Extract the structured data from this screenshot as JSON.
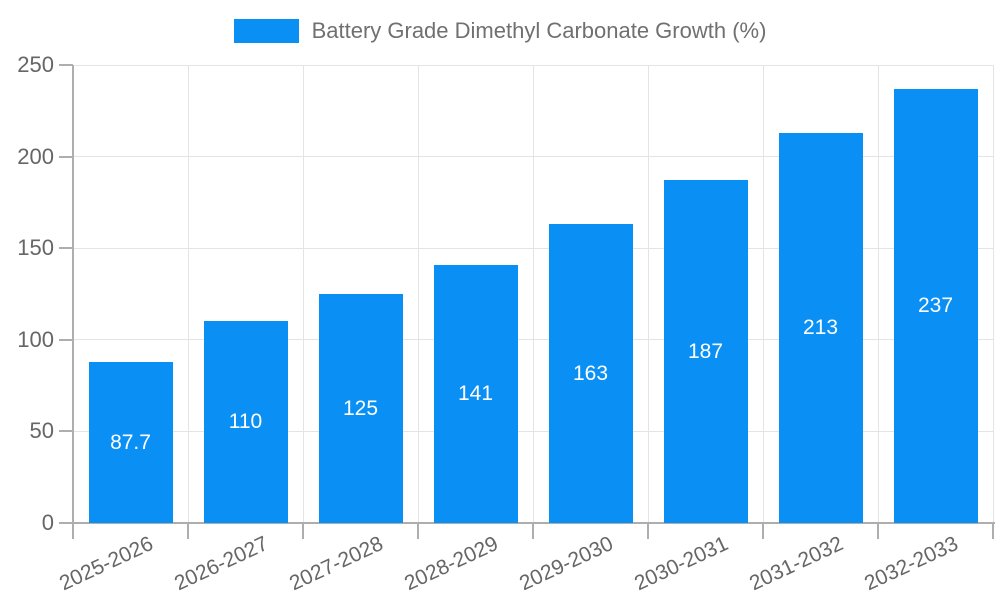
{
  "chart_data": {
    "type": "bar",
    "title": "Battery Grade Dimethyl Carbonate Growth (%)",
    "categories": [
      "2025-2026",
      "2026-2027",
      "2027-2028",
      "2028-2029",
      "2029-2030",
      "2030-2031",
      "2031-2032",
      "2032-2033"
    ],
    "values": [
      87.7,
      110,
      125,
      141,
      163,
      187,
      213,
      237
    ],
    "value_labels": [
      "87.7",
      "110",
      "125",
      "141",
      "163",
      "187",
      "213",
      "237"
    ],
    "xlabel": "",
    "ylabel": "",
    "ylim": [
      0,
      250
    ],
    "yticks": [
      0,
      50,
      100,
      150,
      200,
      250
    ],
    "grid": true,
    "legend_position": "top-center",
    "colors": {
      "bar": "#0a90f5",
      "grid": "#e4e4e4",
      "axis": "#aeaeae",
      "tick_label": "#666666",
      "legend_text": "#707070",
      "value_label": "#ffffff",
      "background": "#ffffff"
    }
  }
}
